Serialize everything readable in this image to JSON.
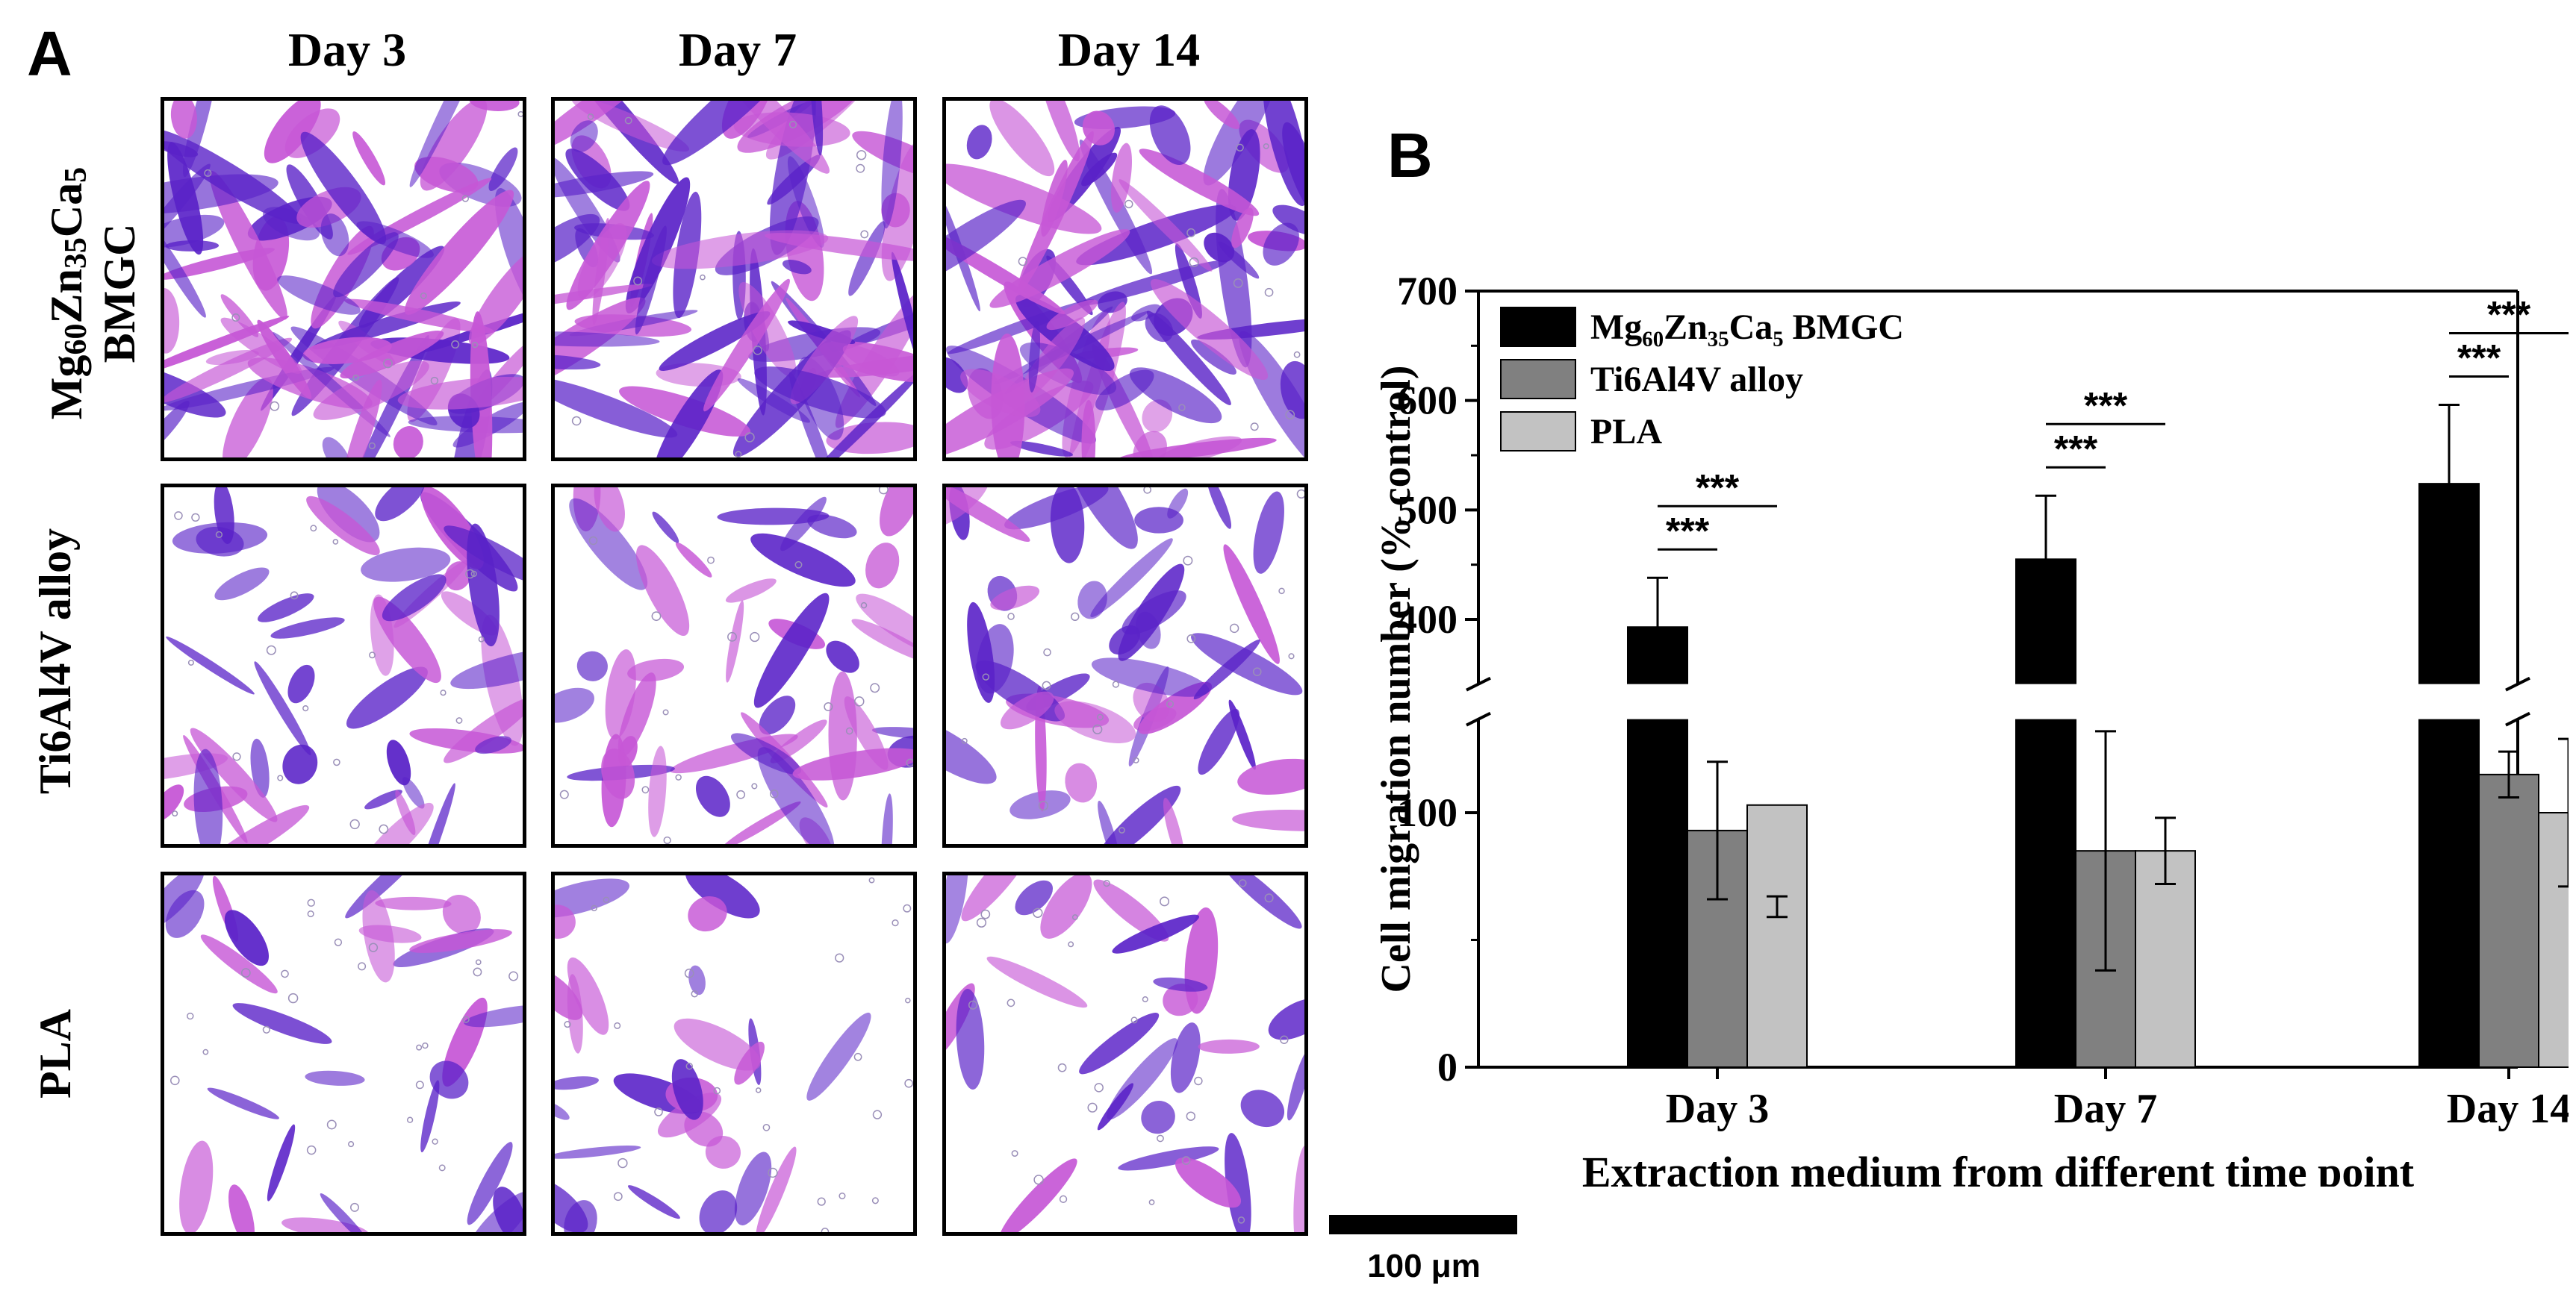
{
  "panels": {
    "a": "A",
    "b": "B"
  },
  "micro": {
    "columns": [
      "Day 3",
      "Day 7",
      "Day 14"
    ],
    "rows": [
      {
        "line1": "Mg",
        "s1": "60",
        "t2": "Zn",
        "s2": "35",
        "t3": "Ca",
        "s3": "5",
        "line2": "BMGC",
        "density": 0.9
      },
      {
        "label": "Ti6Al4V alloy",
        "density": 0.45
      },
      {
        "label": "PLA",
        "density": 0.22
      }
    ],
    "colors": {
      "cell": "#5a22c8",
      "cell_light": "#c657d6",
      "bg": "#ffffff"
    }
  },
  "scale_bar": {
    "label": "100 μm"
  },
  "chart_data": {
    "type": "bar",
    "categories": [
      "Day 3",
      "Day 7",
      "Day 14"
    ],
    "series": [
      {
        "name": "Mg₆₀Zn₃₅Ca₅ BMGC",
        "color": "#000000",
        "values": [
          393,
          455,
          524
        ],
        "errors": [
          45,
          58,
          72
        ]
      },
      {
        "name": "Ti6Al4V alloy",
        "color": "#808080",
        "values": [
          93,
          85,
          115
        ],
        "errors": [
          27,
          47,
          9
        ]
      },
      {
        "name": "PLA",
        "color": "#c2c2c2",
        "values": [
          103,
          85,
          100
        ],
        "errors": [
          44,
          13,
          29
        ]
      }
    ],
    "ylabel": "Cell migration number (% control)",
    "xlabel": "Extraction medium from different time point",
    "yticks": [
      0,
      100,
      400,
      500,
      600,
      700
    ],
    "y_break": [
      135,
      345
    ],
    "ylim": [
      0,
      700
    ],
    "significance": "***",
    "legend": "top-left"
  }
}
